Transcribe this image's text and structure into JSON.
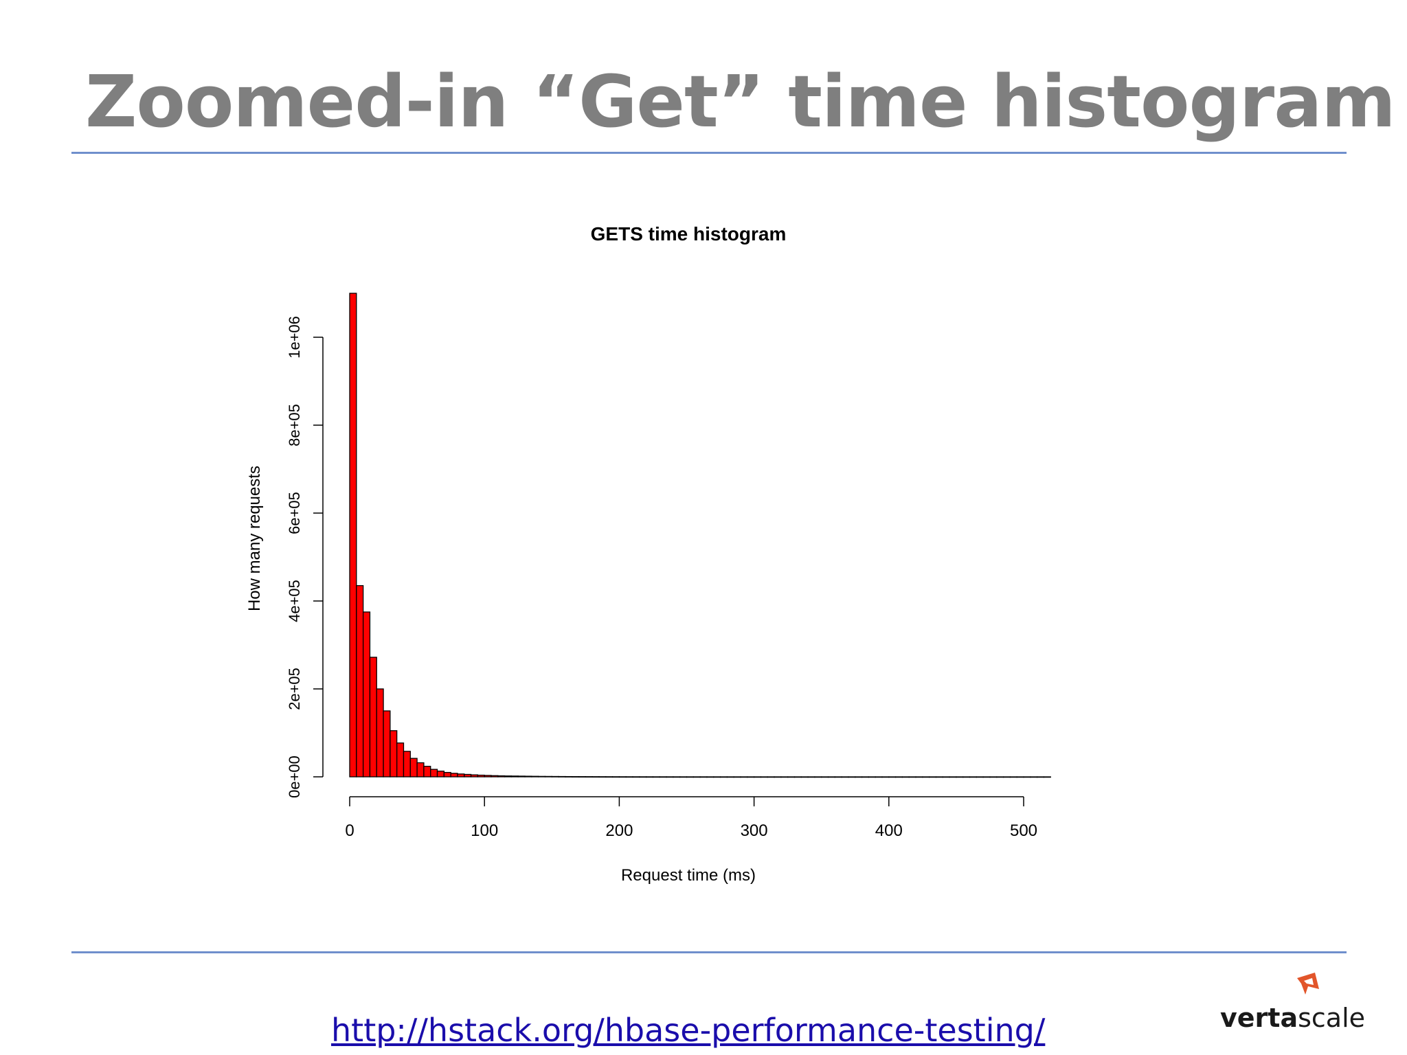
{
  "slide": {
    "title": "Zoomed-in “Get” time histogram",
    "link_text": "http://hstack.org/hbase-performance-testing/",
    "logo": {
      "part1": "verta",
      "part2": "scale",
      "mark_color": "#e2552a"
    },
    "rule_color": "#6f8fcc"
  },
  "chart_data": {
    "type": "bar",
    "title": "GETS time histogram",
    "xlabel": "Request time (ms)",
    "ylabel": "How many requests",
    "bar_color": "#ff0000",
    "bin_width": 5,
    "bins_start": 0,
    "xlim": [
      0,
      520
    ],
    "ylim": [
      0,
      1100000
    ],
    "xticks": [
      0,
      100,
      200,
      300,
      400,
      500
    ],
    "xtick_labels": [
      "0",
      "100",
      "200",
      "300",
      "400",
      "500"
    ],
    "yticks": [
      0,
      200000,
      400000,
      600000,
      800000,
      1000000
    ],
    "ytick_labels": [
      "0e+00",
      "2e+05",
      "4e+05",
      "6e+05",
      "8e+05",
      "1e+06"
    ],
    "grid": false,
    "values": [
      1100000,
      435000,
      375000,
      272000,
      200000,
      150000,
      105000,
      77000,
      58000,
      42000,
      32000,
      24000,
      17000,
      13000,
      10000,
      8000,
      6500,
      5500,
      4500,
      3800,
      3200,
      2700,
      2300,
      2000,
      1800,
      1600,
      1400,
      1200,
      1000,
      900,
      800,
      700,
      600,
      500,
      450,
      400,
      350,
      300,
      260,
      230,
      200,
      180,
      160,
      140,
      120,
      110,
      100,
      90,
      80,
      70,
      60,
      55,
      50,
      45,
      40,
      35,
      30,
      28,
      26,
      24,
      22,
      20,
      18,
      16,
      15,
      14,
      13,
      12,
      11,
      10,
      9,
      8,
      8,
      7,
      7,
      6,
      6,
      5,
      5,
      4,
      4,
      4,
      3,
      3,
      3,
      3,
      2,
      2,
      2,
      2,
      2,
      2,
      2,
      1,
      1,
      1,
      1,
      1,
      1,
      1,
      1,
      1,
      1,
      1
    ]
  }
}
